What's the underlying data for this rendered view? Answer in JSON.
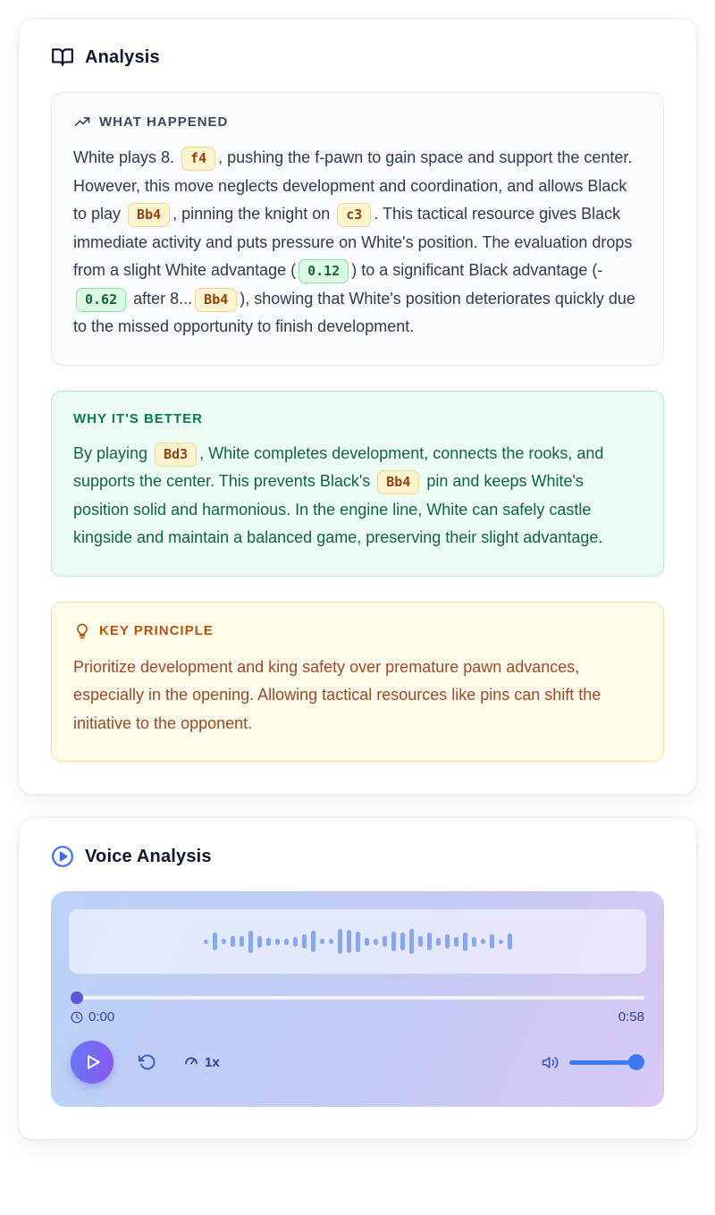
{
  "colors": {
    "accent_blue": "#3B7BF0",
    "play_gradient_start": "#5F7BF6",
    "play_gradient_end": "#8F55EE",
    "move_badge_bg": "#FCF4CE",
    "move_badge_text": "#92400E",
    "eval_badge_bg": "#DBFAE3",
    "eval_badge_text": "#166534",
    "green_section_bg": "#ECFDF5",
    "amber_section_bg": "#FEFBEA",
    "neutral_section_bg": "#F8FAFC"
  },
  "analysis_card": {
    "title": "Analysis",
    "sections": [
      {
        "id": "what_happened",
        "label": "WHAT HAPPENED",
        "segments": [
          {
            "t": "White plays 8. "
          },
          {
            "badge": "f4",
            "kind": "move"
          },
          {
            "t": ", pushing the f-pawn to gain space and support the center. However, this move neglects development and coordination, and allows Black to play "
          },
          {
            "badge": "Bb4",
            "kind": "move"
          },
          {
            "t": ", pinning the knight on "
          },
          {
            "badge": "c3",
            "kind": "move"
          },
          {
            "t": ". This tactical resource gives Black immediate activity and puts pressure on White's position. The evaluation drops from a slight White advantage ("
          },
          {
            "badge": "0.12",
            "kind": "eval"
          },
          {
            "t": ") to a significant Black advantage (-"
          },
          {
            "badge": "0.62",
            "kind": "eval"
          },
          {
            "t": " after 8..."
          },
          {
            "badge": "Bb4",
            "kind": "move"
          },
          {
            "t": "), showing that White's position deteriorates quickly due to the missed opportunity to finish development."
          }
        ]
      },
      {
        "id": "why_better",
        "label": "WHY IT'S BETTER",
        "segments": [
          {
            "t": "By playing "
          },
          {
            "badge": "Bd3",
            "kind": "move"
          },
          {
            "t": ", White completes development, connects the rooks, and supports the center. This prevents Black's "
          },
          {
            "badge": "Bb4",
            "kind": "move"
          },
          {
            "t": " pin and keeps White's position solid and harmonious. In the engine line, White can safely castle kingside and maintain a balanced game, preserving their slight advantage."
          }
        ]
      },
      {
        "id": "key_principle",
        "label": "KEY PRINCIPLE",
        "segments": [
          {
            "t": "Prioritize development and king safety over premature pawn advances, especially in the opening. Allowing tactical resources like pins can shift the initiative to the opponent."
          }
        ]
      }
    ]
  },
  "voice_card": {
    "title": "Voice Analysis",
    "player": {
      "current_time": "0:00",
      "duration": "0:58",
      "speed_label": "1x",
      "progress_percent": 0,
      "volume_percent": 100,
      "waveform": [
        5,
        20,
        6,
        12,
        12,
        25,
        13,
        9,
        7,
        7,
        11,
        16,
        24,
        6,
        6,
        28,
        26,
        23,
        9,
        7,
        12,
        22,
        20,
        28,
        12,
        20,
        9,
        16,
        11,
        21,
        11,
        6,
        16,
        5,
        18
      ]
    }
  }
}
